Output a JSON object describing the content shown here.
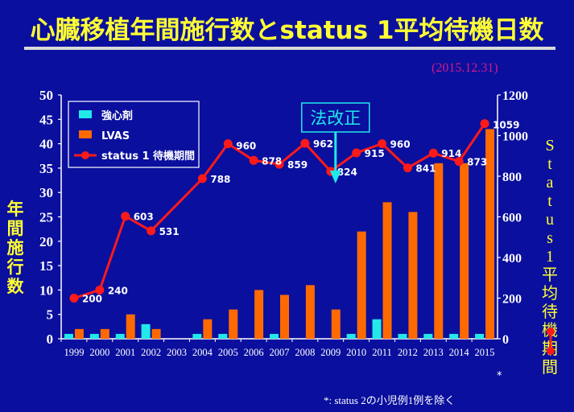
{
  "title": "心臓移植年間施行数とstatus 1平均待機日数",
  "date": "(2015.12.31)",
  "footnote": "*:  status 2の小児例1例を除く",
  "asterisk": "*",
  "chart_data": {
    "type": "bar",
    "categories": [
      "1999",
      "2000",
      "2001",
      "2002",
      "2003",
      "2004",
      "2005",
      "2006",
      "2007",
      "2008",
      "2009",
      "2010",
      "2011",
      "2012",
      "2013",
      "2014",
      "2015"
    ],
    "ylabel": "年間施行数",
    "y2label": "Status 1平均待機期間",
    "ylim": [
      0,
      50
    ],
    "y2lim": [
      0,
      1200
    ],
    "yticks": [
      0,
      5,
      10,
      15,
      20,
      25,
      30,
      35,
      40,
      45,
      50
    ],
    "y2ticks": [
      0,
      200,
      400,
      600,
      800,
      1000,
      1200
    ],
    "series": [
      {
        "name": "強心剤",
        "type": "bar",
        "axis": "left",
        "color": "#22e8e8",
        "values": [
          1,
          1,
          1,
          3,
          0,
          1,
          1,
          0,
          1,
          0,
          0,
          1,
          4,
          1,
          1,
          1,
          1
        ]
      },
      {
        "name": "LVAS",
        "type": "bar",
        "axis": "left",
        "color": "#ff6a00",
        "values": [
          2,
          2,
          5,
          2,
          0,
          4,
          6,
          10,
          9,
          11,
          6,
          22,
          28,
          26,
          36,
          36,
          43
        ]
      },
      {
        "name": "status 1 待機期間",
        "type": "line",
        "axis": "right",
        "color": "#ff1a1a",
        "values": [
          200,
          240,
          603,
          531,
          null,
          788,
          960,
          878,
          859,
          962,
          824,
          915,
          960,
          841,
          914,
          873,
          1059
        ],
        "labels": [
          "200",
          "240",
          "603",
          "531",
          "",
          "788",
          "960",
          "878",
          "859",
          "962",
          "824",
          "915",
          "960",
          "841",
          "914",
          "873",
          "1059"
        ]
      }
    ],
    "annotation": {
      "text": "法改正",
      "x": "2009"
    },
    "legend_position": "top-left",
    "grid": false
  }
}
